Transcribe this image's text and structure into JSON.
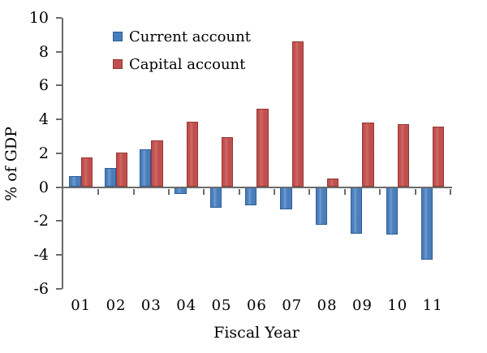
{
  "chart_data": {
    "type": "bar",
    "title": "",
    "xlabel": "Fiscal Year",
    "ylabel": "% of GDP",
    "categories": [
      "01",
      "02",
      "03",
      "04",
      "05",
      "06",
      "07",
      "08",
      "09",
      "10",
      "11"
    ],
    "series": [
      {
        "name": "Current account",
        "color": "#4a7ebb",
        "light": "#6f9bd1",
        "border": "#2e5d97",
        "values": [
          0.65,
          1.15,
          2.25,
          -0.4,
          -1.2,
          -1.1,
          -1.3,
          -2.25,
          -2.75,
          -2.8,
          -4.3
        ]
      },
      {
        "name": "Capital account",
        "color": "#c0504d",
        "light": "#cf6a66",
        "border": "#953735",
        "values": [
          1.75,
          2.05,
          2.75,
          3.85,
          2.95,
          4.65,
          8.6,
          0.5,
          3.8,
          3.7,
          3.55
        ]
      }
    ],
    "ylim": [
      -6,
      10
    ],
    "yticks": [
      10,
      8,
      6,
      4,
      2,
      0,
      -2,
      -4,
      -6
    ],
    "grid": false,
    "legend_position": "top-left-inside",
    "axis_color": "#6b6b6b",
    "text_color": "#000000"
  }
}
